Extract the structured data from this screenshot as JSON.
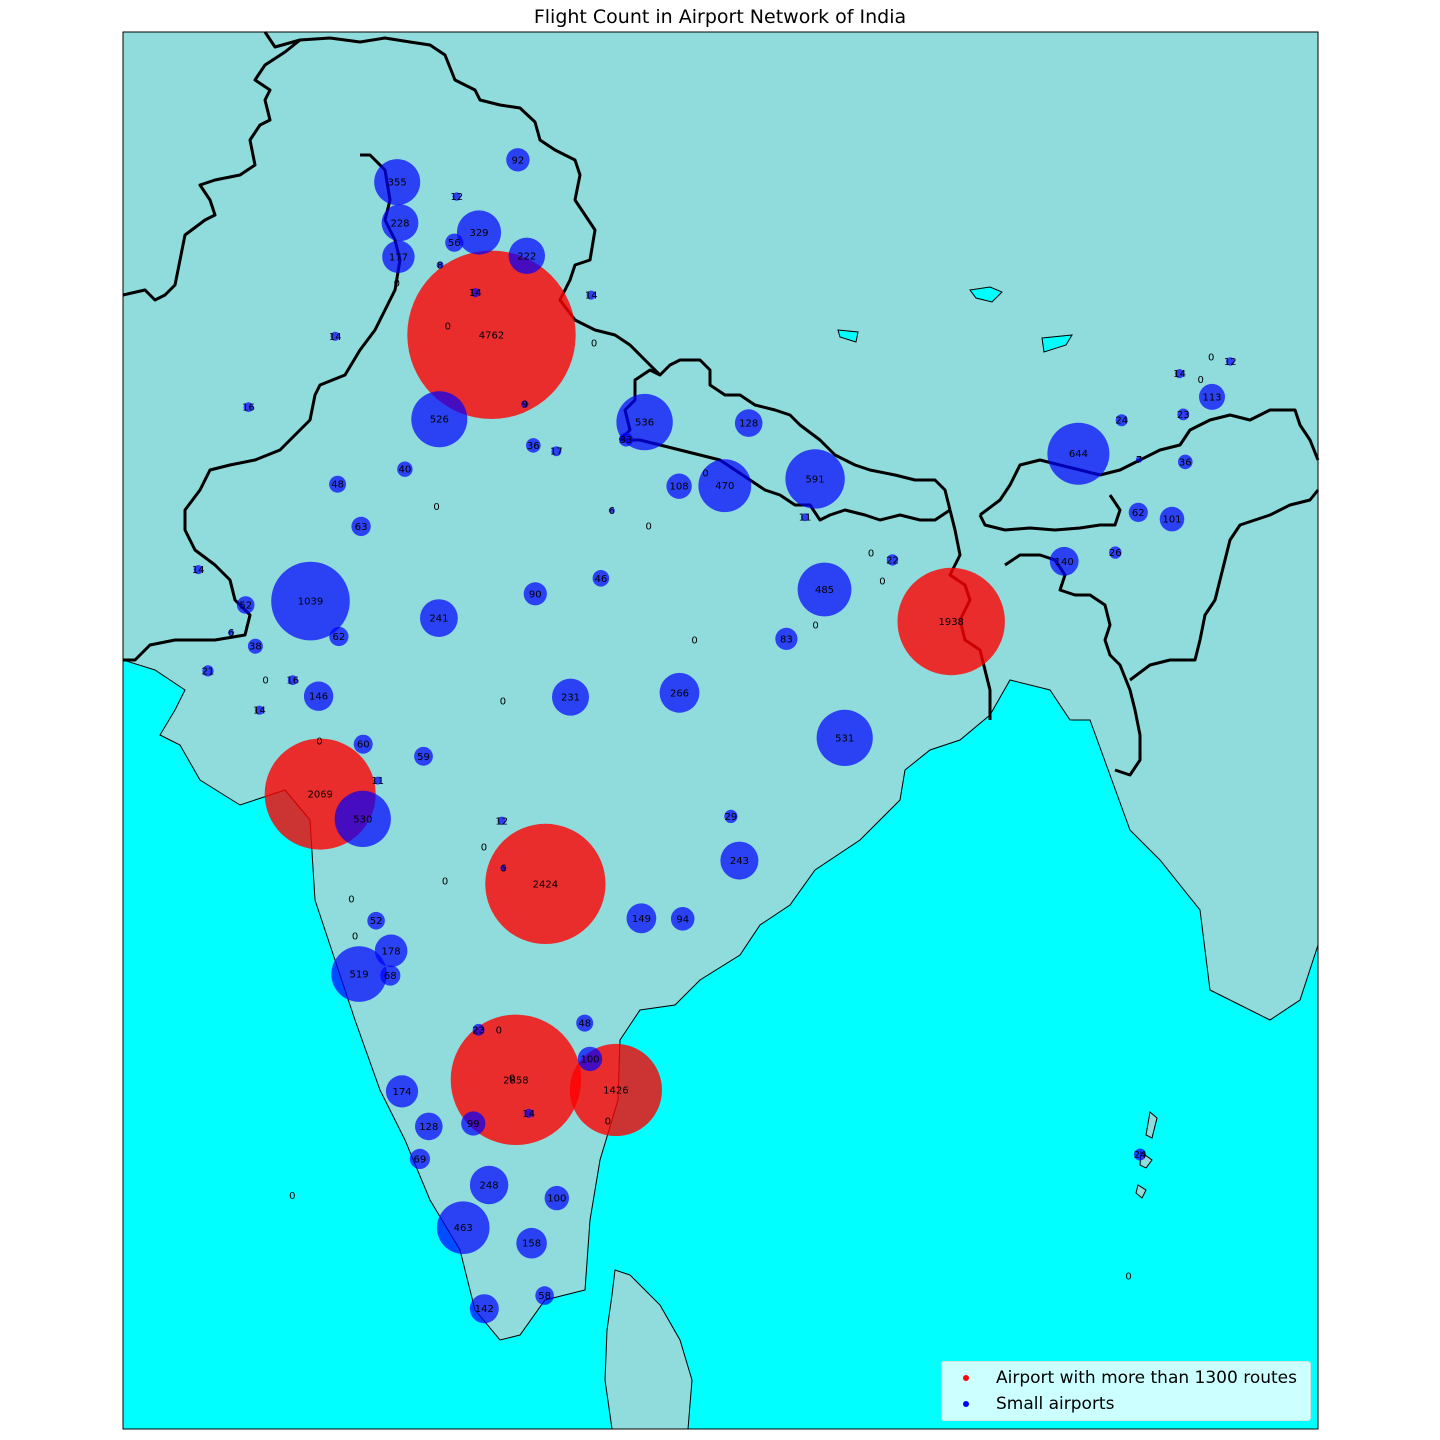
{
  "title": "Flight Count in Airport Network of India",
  "colors": {
    "ocean": "#00ffff",
    "land": "#90dbdb",
    "large_airport": "#ff0000",
    "small_airport": "#0000ff",
    "border": "#000000"
  },
  "legend": {
    "large_label": "Airport with more than 1300 routes",
    "small_label": "Small airports"
  },
  "map_data": {
    "threshold": 1300,
    "airports": [
      {
        "count": 4762,
        "lon": 77.1,
        "lat": 28.56
      },
      {
        "count": 2858,
        "lon": 77.7,
        "lat": 13.2
      },
      {
        "count": 2424,
        "lon": 78.43,
        "lat": 17.24
      },
      {
        "count": 2069,
        "lon": 72.87,
        "lat": 19.09
      },
      {
        "count": 1938,
        "lon": 88.45,
        "lat": 22.65
      },
      {
        "count": 1426,
        "lon": 80.17,
        "lat": 12.99
      },
      {
        "count": 1039,
        "lon": 72.63,
        "lat": 23.07
      },
      {
        "count": 644,
        "lon": 91.59,
        "lat": 26.11
      },
      {
        "count": 591,
        "lon": 85.09,
        "lat": 25.59
      },
      {
        "count": 536,
        "lon": 80.88,
        "lat": 26.76
      },
      {
        "count": 531,
        "lon": 85.82,
        "lat": 20.25
      },
      {
        "count": 530,
        "lon": 73.92,
        "lat": 18.58
      },
      {
        "count": 526,
        "lon": 75.81,
        "lat": 26.82
      },
      {
        "count": 519,
        "lon": 73.83,
        "lat": 15.38
      },
      {
        "count": 485,
        "lon": 85.32,
        "lat": 23.31
      },
      {
        "count": 470,
        "lon": 82.86,
        "lat": 25.45
      },
      {
        "count": 463,
        "lon": 76.4,
        "lat": 10.15
      },
      {
        "count": 355,
        "lon": 74.77,
        "lat": 31.71
      },
      {
        "count": 329,
        "lon": 76.79,
        "lat": 30.67
      },
      {
        "count": 266,
        "lon": 81.74,
        "lat": 21.18
      },
      {
        "count": 248,
        "lon": 77.04,
        "lat": 11.03
      },
      {
        "count": 243,
        "lon": 83.22,
        "lat": 17.72
      },
      {
        "count": 241,
        "lon": 75.8,
        "lat": 22.72
      },
      {
        "count": 231,
        "lon": 79.05,
        "lat": 21.09
      },
      {
        "count": 228,
        "lon": 74.84,
        "lat": 30.87
      },
      {
        "count": 222,
        "lon": 77.97,
        "lat": 30.19
      },
      {
        "count": 178,
        "lon": 74.62,
        "lat": 15.86
      },
      {
        "count": 177,
        "lon": 74.8,
        "lat": 30.17
      },
      {
        "count": 174,
        "lon": 74.89,
        "lat": 12.96
      },
      {
        "count": 158,
        "lon": 78.09,
        "lat": 9.83
      },
      {
        "count": 149,
        "lon": 80.8,
        "lat": 16.53
      },
      {
        "count": 146,
        "lon": 72.83,
        "lat": 21.11
      },
      {
        "count": 142,
        "lon": 76.92,
        "lat": 8.48
      },
      {
        "count": 140,
        "lon": 91.24,
        "lat": 23.89
      },
      {
        "count": 128,
        "lon": 83.45,
        "lat": 26.74
      },
      {
        "count": 128,
        "lon": 75.55,
        "lat": 12.24
      },
      {
        "count": 113,
        "lon": 94.89,
        "lat": 27.28
      },
      {
        "count": 108,
        "lon": 81.73,
        "lat": 25.44
      },
      {
        "count": 101,
        "lon": 93.9,
        "lat": 24.76
      },
      {
        "count": 100,
        "lon": 79.53,
        "lat": 13.63
      },
      {
        "count": 100,
        "lon": 78.71,
        "lat": 10.76
      },
      {
        "count": 99,
        "lon": 76.65,
        "lat": 12.3
      },
      {
        "count": 94,
        "lon": 81.82,
        "lat": 16.52
      },
      {
        "count": 92,
        "lon": 77.75,
        "lat": 32.17
      },
      {
        "count": 90,
        "lon": 78.18,
        "lat": 23.22
      },
      {
        "count": 83,
        "lon": 84.38,
        "lat": 22.29
      },
      {
        "count": 69,
        "lon": 75.33,
        "lat": 11.57
      },
      {
        "count": 68,
        "lon": 74.6,
        "lat": 15.35
      },
      {
        "count": 63,
        "lon": 73.88,
        "lat": 24.61
      },
      {
        "count": 62,
        "lon": 73.33,
        "lat": 22.34
      },
      {
        "count": 62,
        "lon": 93.07,
        "lat": 24.9
      },
      {
        "count": 60,
        "lon": 73.93,
        "lat": 20.12
      },
      {
        "count": 59,
        "lon": 75.42,
        "lat": 19.87
      },
      {
        "count": 58,
        "lon": 78.41,
        "lat": 8.75
      },
      {
        "count": 56,
        "lon": 76.18,
        "lat": 30.46
      },
      {
        "count": 52,
        "lon": 71.03,
        "lat": 22.99
      },
      {
        "count": 52,
        "lon": 74.25,
        "lat": 16.48
      },
      {
        "count": 48,
        "lon": 73.3,
        "lat": 25.48
      },
      {
        "count": 48,
        "lon": 79.4,
        "lat": 14.37
      },
      {
        "count": 46,
        "lon": 79.8,
        "lat": 23.54
      },
      {
        "count": 40,
        "lon": 74.96,
        "lat": 25.79
      },
      {
        "count": 38,
        "lon": 71.27,
        "lat": 22.14
      },
      {
        "count": 36,
        "lon": 78.13,
        "lat": 26.28
      },
      {
        "count": 36,
        "lon": 94.23,
        "lat": 25.94
      },
      {
        "count": 33,
        "lon": 80.42,
        "lat": 26.4
      },
      {
        "count": 29,
        "lon": 83.01,
        "lat": 18.63
      },
      {
        "count": 26,
        "lon": 92.5,
        "lat": 24.07
      },
      {
        "count": 24,
        "lon": 92.66,
        "lat": 26.8
      },
      {
        "count": 24,
        "lon": 93.11,
        "lat": 11.66
      },
      {
        "count": 23,
        "lon": 76.78,
        "lat": 14.23
      },
      {
        "count": 23,
        "lon": 94.18,
        "lat": 26.92
      },
      {
        "count": 22,
        "lon": 87.0,
        "lat": 23.92
      },
      {
        "count": 21,
        "lon": 70.1,
        "lat": 21.63
      },
      {
        "count": 17,
        "lon": 78.7,
        "lat": 26.16
      },
      {
        "count": 16,
        "lon": 71.1,
        "lat": 27.07
      },
      {
        "count": 16,
        "lon": 72.19,
        "lat": 21.44
      },
      {
        "count": 14,
        "lon": 73.24,
        "lat": 28.53
      },
      {
        "count": 14,
        "lon": 69.86,
        "lat": 23.72
      },
      {
        "count": 14,
        "lon": 71.37,
        "lat": 20.82
      },
      {
        "count": 14,
        "lon": 79.56,
        "lat": 29.38
      },
      {
        "count": 14,
        "lon": 76.7,
        "lat": 29.43
      },
      {
        "count": 14,
        "lon": 94.09,
        "lat": 27.76
      },
      {
        "count": 14,
        "lon": 78.02,
        "lat": 12.51
      },
      {
        "count": 12,
        "lon": 76.24,
        "lat": 31.41
      },
      {
        "count": 12,
        "lon": 95.34,
        "lat": 28.01
      },
      {
        "count": 12,
        "lon": 77.35,
        "lat": 18.54
      },
      {
        "count": 11,
        "lon": 74.29,
        "lat": 19.37
      },
      {
        "count": 11,
        "lon": 84.84,
        "lat": 24.8
      },
      {
        "count": 9,
        "lon": 77.92,
        "lat": 27.13
      },
      {
        "count": 8,
        "lon": 75.83,
        "lat": 30.0
      },
      {
        "count": 7,
        "lon": 93.09,
        "lat": 25.99
      },
      {
        "count": 6,
        "lon": 70.67,
        "lat": 22.42
      },
      {
        "count": 6,
        "lon": 80.07,
        "lat": 24.94
      },
      {
        "count": 6,
        "lon": 77.39,
        "lat": 17.57
      },
      {
        "count": 0,
        "lon": 74.76,
        "lat": 29.63
      },
      {
        "count": 0,
        "lon": 76.02,
        "lat": 28.74
      },
      {
        "count": 0,
        "lon": 79.63,
        "lat": 28.39
      },
      {
        "count": 0,
        "lon": 94.87,
        "lat": 28.1
      },
      {
        "count": 0,
        "lon": 94.61,
        "lat": 27.64
      },
      {
        "count": 0,
        "lon": 82.38,
        "lat": 25.71
      },
      {
        "count": 0,
        "lon": 75.74,
        "lat": 25.02
      },
      {
        "count": 0,
        "lon": 80.98,
        "lat": 24.62
      },
      {
        "count": 0,
        "lon": 86.47,
        "lat": 24.06
      },
      {
        "count": 0,
        "lon": 86.75,
        "lat": 23.48
      },
      {
        "count": 0,
        "lon": 85.1,
        "lat": 22.58
      },
      {
        "count": 0,
        "lon": 71.52,
        "lat": 21.44
      },
      {
        "count": 0,
        "lon": 82.11,
        "lat": 22.27
      },
      {
        "count": 0,
        "lon": 77.38,
        "lat": 21.01
      },
      {
        "count": 0,
        "lon": 72.85,
        "lat": 20.19
      },
      {
        "count": 0,
        "lon": 76.91,
        "lat": 18.0
      },
      {
        "count": 0,
        "lon": 75.95,
        "lat": 17.3
      },
      {
        "count": 0,
        "lon": 73.64,
        "lat": 16.93
      },
      {
        "count": 0,
        "lon": 73.73,
        "lat": 16.16
      },
      {
        "count": 0,
        "lon": 77.28,
        "lat": 14.23
      },
      {
        "count": 0,
        "lon": 77.61,
        "lat": 13.24
      },
      {
        "count": 0,
        "lon": 79.97,
        "lat": 12.35
      },
      {
        "count": 0,
        "lon": 72.18,
        "lat": 10.81
      },
      {
        "count": 0,
        "lon": 92.83,
        "lat": 9.15
      }
    ]
  }
}
